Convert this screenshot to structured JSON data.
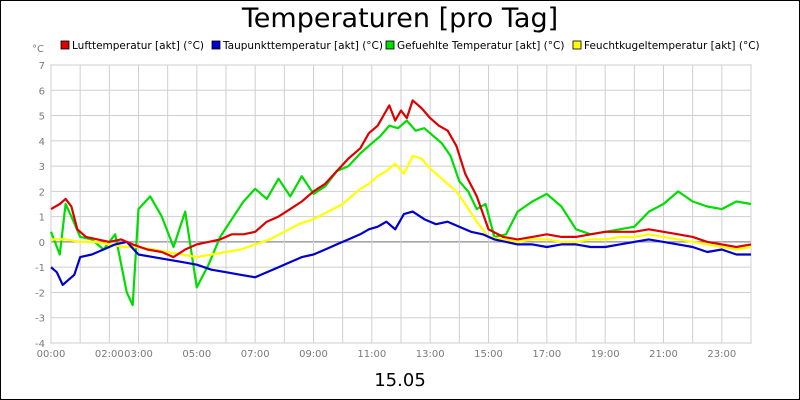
{
  "chart_data": {
    "type": "line",
    "title": "Temperaturen [pro Tag]",
    "date_label": "15.05",
    "y_unit": "°C",
    "ylim": [
      -4,
      7
    ],
    "yticks": [
      -4,
      -3,
      -2,
      -1,
      0,
      1,
      2,
      3,
      4,
      5,
      6,
      7
    ],
    "xlim": [
      0,
      24
    ],
    "x_unit": "hours",
    "xticks": [
      {
        "x": 0,
        "label": "00:00"
      },
      {
        "x": 2,
        "label": "02:00"
      },
      {
        "x": 3,
        "label": "03:00"
      },
      {
        "x": 5,
        "label": "05:00"
      },
      {
        "x": 7,
        "label": "07:00"
      },
      {
        "x": 9,
        "label": "09:00"
      },
      {
        "x": 11,
        "label": "11:00"
      },
      {
        "x": 13,
        "label": "13:00"
      },
      {
        "x": 15,
        "label": "15:00"
      },
      {
        "x": 17,
        "label": "17:00"
      },
      {
        "x": 19,
        "label": "19:00"
      },
      {
        "x": 21,
        "label": "21:00"
      },
      {
        "x": 23,
        "label": "23:00"
      }
    ],
    "grid": true,
    "legend_position": "top",
    "series": [
      {
        "name": "Lufttemperatur [akt] (°C)",
        "color": "#dd0000",
        "x": [
          0,
          0.3,
          0.5,
          0.7,
          0.9,
          1.2,
          1.6,
          2.0,
          2.4,
          2.8,
          3.3,
          3.8,
          4.2,
          4.6,
          5.0,
          5.4,
          5.8,
          6.2,
          6.6,
          7.0,
          7.4,
          7.8,
          8.2,
          8.6,
          9.0,
          9.4,
          9.8,
          10.2,
          10.6,
          10.9,
          11.2,
          11.4,
          11.6,
          11.8,
          12.0,
          12.2,
          12.4,
          12.7,
          13.0,
          13.3,
          13.6,
          13.9,
          14.2,
          14.6,
          15.0,
          15.5,
          16.0,
          16.5,
          17.0,
          17.5,
          18.0,
          18.5,
          19.0,
          19.5,
          20.0,
          20.5,
          21.0,
          21.5,
          22.0,
          22.5,
          23.0,
          23.5,
          24.0
        ],
        "values": [
          1.3,
          1.5,
          1.7,
          1.4,
          0.5,
          0.2,
          0.1,
          0.0,
          0.1,
          -0.1,
          -0.3,
          -0.4,
          -0.6,
          -0.3,
          -0.1,
          0.0,
          0.1,
          0.3,
          0.3,
          0.4,
          0.8,
          1.0,
          1.3,
          1.6,
          2.0,
          2.3,
          2.8,
          3.3,
          3.7,
          4.3,
          4.6,
          5.0,
          5.4,
          4.8,
          5.2,
          4.9,
          5.6,
          5.3,
          4.9,
          4.6,
          4.4,
          3.8,
          2.7,
          1.8,
          0.5,
          0.2,
          0.1,
          0.2,
          0.3,
          0.2,
          0.2,
          0.3,
          0.4,
          0.4,
          0.4,
          0.5,
          0.4,
          0.3,
          0.2,
          0.0,
          -0.1,
          -0.2,
          -0.1
        ]
      },
      {
        "name": "Taupunkttemperatur [akt] (°C)",
        "color": "#0000cc",
        "x": [
          0,
          0.2,
          0.4,
          0.6,
          0.8,
          1.0,
          1.4,
          1.8,
          2.2,
          2.6,
          3.0,
          3.5,
          4.0,
          4.5,
          5.0,
          5.5,
          6.0,
          6.5,
          7.0,
          7.4,
          7.8,
          8.2,
          8.6,
          9.0,
          9.4,
          9.8,
          10.2,
          10.6,
          10.9,
          11.2,
          11.5,
          11.8,
          12.1,
          12.4,
          12.8,
          13.2,
          13.6,
          14.0,
          14.4,
          14.8,
          15.2,
          15.6,
          16.0,
          16.5,
          17.0,
          17.5,
          18.0,
          18.5,
          19.0,
          19.5,
          20.0,
          20.5,
          21.0,
          21.5,
          22.0,
          22.5,
          23.0,
          23.5,
          24.0
        ],
        "values": [
          -1.0,
          -1.2,
          -1.7,
          -1.5,
          -1.3,
          -0.6,
          -0.5,
          -0.3,
          -0.1,
          0.0,
          -0.5,
          -0.6,
          -0.7,
          -0.8,
          -0.9,
          -1.1,
          -1.2,
          -1.3,
          -1.4,
          -1.2,
          -1.0,
          -0.8,
          -0.6,
          -0.5,
          -0.3,
          -0.1,
          0.1,
          0.3,
          0.5,
          0.6,
          0.8,
          0.5,
          1.1,
          1.2,
          0.9,
          0.7,
          0.8,
          0.6,
          0.4,
          0.3,
          0.1,
          0.0,
          -0.1,
          -0.1,
          -0.2,
          -0.1,
          -0.1,
          -0.2,
          -0.2,
          -0.1,
          0.0,
          0.1,
          0.0,
          -0.1,
          -0.2,
          -0.4,
          -0.3,
          -0.5,
          -0.5
        ]
      },
      {
        "name": "Gefuehlte Temperatur [akt] (°C)",
        "color": "#00dd00",
        "x": [
          0,
          0.3,
          0.5,
          0.7,
          1.0,
          1.4,
          1.8,
          2.2,
          2.6,
          2.8,
          3.0,
          3.4,
          3.8,
          4.2,
          4.6,
          5.0,
          5.4,
          5.8,
          6.2,
          6.6,
          7.0,
          7.4,
          7.8,
          8.2,
          8.6,
          9.0,
          9.4,
          9.8,
          10.2,
          10.6,
          11.0,
          11.3,
          11.6,
          11.9,
          12.2,
          12.5,
          12.8,
          13.1,
          13.4,
          13.7,
          14.0,
          14.3,
          14.6,
          14.9,
          15.2,
          15.6,
          16.0,
          16.5,
          17.0,
          17.5,
          18.0,
          18.5,
          19.0,
          19.5,
          20.0,
          20.5,
          21.0,
          21.5,
          22.0,
          22.5,
          23.0,
          23.5,
          24.0
        ],
        "values": [
          0.4,
          -0.5,
          1.5,
          1.0,
          0.2,
          0.1,
          -0.3,
          0.3,
          -2.0,
          -2.5,
          1.3,
          1.8,
          1.0,
          -0.2,
          1.2,
          -1.8,
          -0.9,
          0.2,
          0.9,
          1.6,
          2.1,
          1.7,
          2.5,
          1.8,
          2.6,
          1.9,
          2.2,
          2.8,
          3.0,
          3.5,
          3.9,
          4.2,
          4.6,
          4.5,
          4.8,
          4.4,
          4.5,
          4.2,
          3.9,
          3.4,
          2.4,
          2.0,
          1.3,
          1.5,
          0.2,
          0.3,
          1.2,
          1.6,
          1.9,
          1.4,
          0.5,
          0.3,
          0.4,
          0.5,
          0.6,
          1.2,
          1.5,
          2.0,
          1.6,
          1.4,
          1.3,
          1.6,
          1.5
        ]
      },
      {
        "name": "Feuchtkugeltemperatur [akt] (°C)",
        "color": "#ffff00",
        "x": [
          0,
          0.5,
          1.0,
          1.5,
          2.0,
          2.5,
          3.0,
          3.5,
          4.0,
          4.5,
          5.0,
          5.5,
          6.0,
          6.5,
          7.0,
          7.5,
          8.0,
          8.5,
          9.0,
          9.5,
          10.0,
          10.3,
          10.6,
          10.9,
          11.2,
          11.5,
          11.8,
          12.1,
          12.4,
          12.7,
          13.0,
          13.3,
          13.6,
          13.9,
          14.2,
          14.6,
          15.0,
          15.5,
          16.0,
          16.5,
          17.0,
          17.5,
          18.0,
          18.5,
          19.0,
          19.5,
          20.0,
          20.5,
          21.0,
          21.5,
          22.0,
          22.5,
          23.0,
          23.5,
          24.0
        ],
        "values": [
          0.1,
          0.1,
          0.0,
          0.0,
          -0.1,
          -0.2,
          -0.2,
          -0.3,
          -0.4,
          -0.5,
          -0.6,
          -0.5,
          -0.4,
          -0.3,
          -0.1,
          0.1,
          0.4,
          0.7,
          0.9,
          1.2,
          1.5,
          1.8,
          2.1,
          2.3,
          2.6,
          2.8,
          3.1,
          2.7,
          3.4,
          3.3,
          2.9,
          2.6,
          2.3,
          2.0,
          1.5,
          0.8,
          0.2,
          0.1,
          0.0,
          0.1,
          0.1,
          0.0,
          0.0,
          0.1,
          0.1,
          0.2,
          0.2,
          0.3,
          0.2,
          0.1,
          0.0,
          -0.1,
          -0.2,
          -0.3,
          -0.2
        ]
      }
    ]
  }
}
